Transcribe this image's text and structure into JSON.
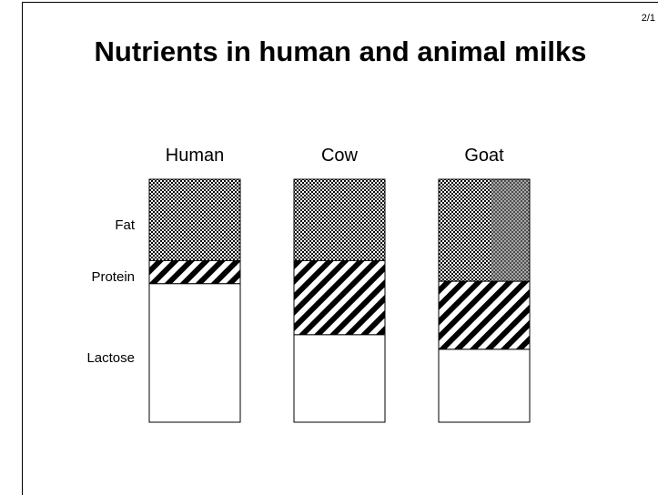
{
  "slide": {
    "title": "Nutrients in human and animal milks",
    "page_number": "2/1"
  },
  "chart_data": {
    "type": "bar",
    "stacked": true,
    "categories": [
      "Human",
      "Cow",
      "Goat"
    ],
    "component_labels": [
      "Fat",
      "Protein",
      "Lactose"
    ],
    "series": [
      {
        "name": "Fat",
        "values": [
          3.35,
          3.35,
          4.2
        ]
      },
      {
        "name": "Protein",
        "values": [
          0.95,
          3.05,
          2.8
        ]
      },
      {
        "name": "Lactose",
        "values": [
          5.7,
          3.6,
          3.0
        ]
      }
    ],
    "total": 10,
    "ylim": [
      0,
      10
    ],
    "grid": false
  }
}
